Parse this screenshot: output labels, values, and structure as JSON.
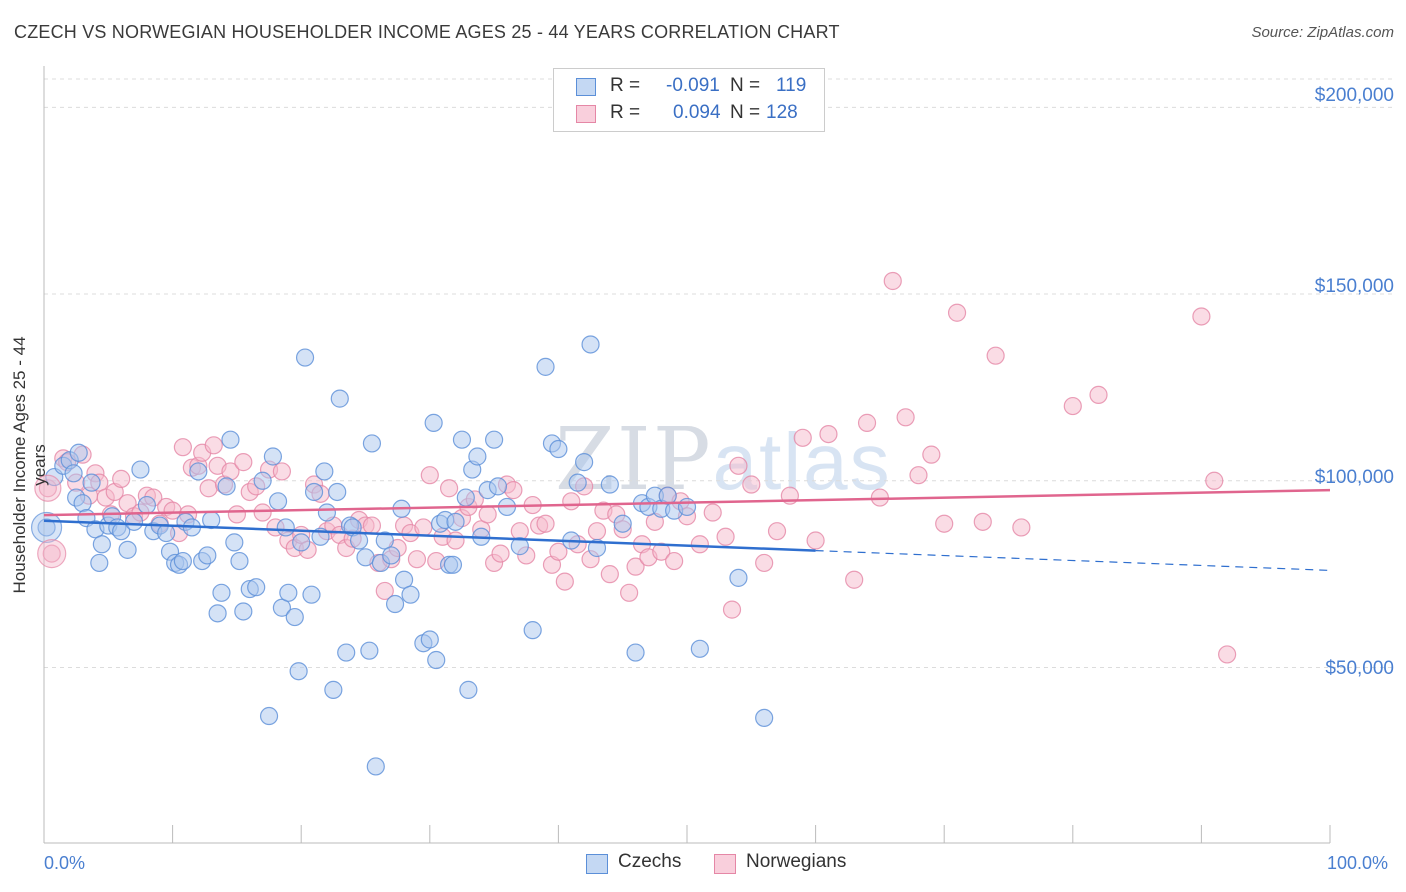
{
  "title": "CZECH VS NORWEGIAN HOUSEHOLDER INCOME AGES 25 - 44 YEARS CORRELATION CHART",
  "source": "Source: ZipAtlas.com",
  "watermark": {
    "zip": "ZIP",
    "atlas": "atlas"
  },
  "legend": {
    "rows": [
      {
        "r_label": "R =",
        "r_value": "-0.091",
        "n_label": "N =",
        "n_value": "119"
      },
      {
        "r_label": "R =",
        "r_value": "0.094",
        "n_label": "N =",
        "n_value": "128"
      }
    ]
  },
  "colors": {
    "czechs_fill": "#a9c6ee",
    "czechs_stroke": "#5b8fd8",
    "czechs_line": "#2f6fcf",
    "norwegians_fill": "#f5b9cb",
    "norwegians_stroke": "#e587a6",
    "norwegians_line": "#e0658e",
    "axis_text": "#4a7fd0",
    "grid": "#dcdcdc"
  },
  "chart_data": {
    "type": "scatter",
    "xlabel": "",
    "ylabel": "Householder Income Ages 25 - 44 years",
    "xlim": [
      0,
      100
    ],
    "ylim": [
      3000,
      210000
    ],
    "x_tick_labels": [
      "0.0%",
      "100.0%"
    ],
    "y_ticks": [
      50000,
      100000,
      150000,
      200000
    ],
    "y_tick_labels": [
      "$50,000",
      "$100,000",
      "$150,000",
      "$200,000"
    ],
    "grid": true,
    "legend_position": "bottom-center",
    "series": [
      {
        "name": "Czechs",
        "trend": {
          "x0": 0,
          "y0": 89300,
          "x1": 60,
          "y1": 81300,
          "dashed_to_x": 100,
          "dashed_to_y": 76000
        },
        "points": [
          [
            0.2,
            87500
          ],
          [
            0.8,
            101000
          ],
          [
            1.5,
            104000
          ],
          [
            2.0,
            105500
          ],
          [
            2.3,
            102000
          ],
          [
            2.5,
            95500
          ],
          [
            2.7,
            107500
          ],
          [
            3.0,
            94000
          ],
          [
            3.3,
            90000
          ],
          [
            3.7,
            99500
          ],
          [
            4.0,
            87000
          ],
          [
            4.3,
            78000
          ],
          [
            4.5,
            83000
          ],
          [
            5.0,
            88000
          ],
          [
            5.3,
            90500
          ],
          [
            5.7,
            87500
          ],
          [
            6.0,
            86500
          ],
          [
            6.5,
            81500
          ],
          [
            7.0,
            89000
          ],
          [
            7.5,
            103000
          ],
          [
            8.0,
            93500
          ],
          [
            8.5,
            86500
          ],
          [
            9.0,
            88000
          ],
          [
            9.5,
            86000
          ],
          [
            9.8,
            81000
          ],
          [
            10.2,
            78000
          ],
          [
            10.5,
            77500
          ],
          [
            10.8,
            78500
          ],
          [
            11.0,
            89000
          ],
          [
            11.5,
            87500
          ],
          [
            12.0,
            102500
          ],
          [
            12.3,
            78500
          ],
          [
            12.7,
            80000
          ],
          [
            13.0,
            89500
          ],
          [
            13.5,
            64500
          ],
          [
            13.8,
            70000
          ],
          [
            14.2,
            98500
          ],
          [
            14.5,
            111000
          ],
          [
            14.8,
            83500
          ],
          [
            15.2,
            78500
          ],
          [
            15.5,
            65000
          ],
          [
            16.0,
            71000
          ],
          [
            16.5,
            71500
          ],
          [
            17.0,
            100000
          ],
          [
            17.5,
            37000
          ],
          [
            17.8,
            106500
          ],
          [
            18.2,
            94500
          ],
          [
            18.5,
            66000
          ],
          [
            18.8,
            87500
          ],
          [
            19.0,
            70000
          ],
          [
            19.5,
            63500
          ],
          [
            19.8,
            49000
          ],
          [
            20.0,
            83500
          ],
          [
            20.3,
            133000
          ],
          [
            20.8,
            69500
          ],
          [
            21.0,
            97000
          ],
          [
            21.5,
            85000
          ],
          [
            21.8,
            102500
          ],
          [
            22.0,
            91500
          ],
          [
            22.5,
            44000
          ],
          [
            22.8,
            97000
          ],
          [
            23.0,
            122000
          ],
          [
            23.5,
            54000
          ],
          [
            23.8,
            88000
          ],
          [
            24.0,
            87500
          ],
          [
            24.5,
            84000
          ],
          [
            25.0,
            79500
          ],
          [
            25.3,
            54500
          ],
          [
            25.5,
            110000
          ],
          [
            25.8,
            23500
          ],
          [
            26.2,
            78000
          ],
          [
            26.5,
            84000
          ],
          [
            27.0,
            80000
          ],
          [
            27.3,
            67000
          ],
          [
            27.8,
            92500
          ],
          [
            28.0,
            73500
          ],
          [
            28.5,
            69500
          ],
          [
            29.5,
            56500
          ],
          [
            30.0,
            57500
          ],
          [
            30.3,
            115500
          ],
          [
            30.5,
            52000
          ],
          [
            30.8,
            88500
          ],
          [
            31.2,
            89500
          ],
          [
            31.5,
            77500
          ],
          [
            31.8,
            77500
          ],
          [
            32.0,
            89000
          ],
          [
            32.5,
            111000
          ],
          [
            32.8,
            95500
          ],
          [
            33.0,
            44000
          ],
          [
            33.3,
            103000
          ],
          [
            33.7,
            106500
          ],
          [
            34.0,
            85000
          ],
          [
            34.5,
            97500
          ],
          [
            35.0,
            111000
          ],
          [
            35.3,
            98500
          ],
          [
            36.0,
            93000
          ],
          [
            37.0,
            82500
          ],
          [
            38.0,
            60000
          ],
          [
            39.0,
            130500
          ],
          [
            39.5,
            110000
          ],
          [
            40.0,
            108500
          ],
          [
            41.0,
            84000
          ],
          [
            41.5,
            99500
          ],
          [
            42.0,
            105000
          ],
          [
            42.5,
            136500
          ],
          [
            43.0,
            82000
          ],
          [
            44.0,
            99000
          ],
          [
            45.0,
            88500
          ],
          [
            46.0,
            54000
          ],
          [
            46.5,
            94000
          ],
          [
            47.0,
            93000
          ],
          [
            47.5,
            96000
          ],
          [
            48.0,
            92500
          ],
          [
            48.5,
            96000
          ],
          [
            49.0,
            92000
          ],
          [
            50.0,
            93000
          ],
          [
            51.0,
            55000
          ],
          [
            54.0,
            74000
          ],
          [
            56.0,
            36500
          ]
        ]
      },
      {
        "name": "Norwegians",
        "trend": {
          "x0": 0,
          "y0": 90800,
          "x1": 100,
          "y1": 97500
        },
        "points": [
          [
            0.3,
            98000
          ],
          [
            0.6,
            80500
          ],
          [
            1.5,
            106000
          ],
          [
            1.8,
            105000
          ],
          [
            2.5,
            99500
          ],
          [
            3.0,
            107000
          ],
          [
            3.5,
            96000
          ],
          [
            4.0,
            102000
          ],
          [
            4.3,
            99500
          ],
          [
            4.8,
            95500
          ],
          [
            5.2,
            91000
          ],
          [
            5.5,
            97000
          ],
          [
            6.0,
            100500
          ],
          [
            6.5,
            94000
          ],
          [
            7.0,
            90500
          ],
          [
            7.5,
            91500
          ],
          [
            8.0,
            96000
          ],
          [
            8.5,
            95500
          ],
          [
            9.0,
            88500
          ],
          [
            9.5,
            93000
          ],
          [
            10.0,
            92000
          ],
          [
            10.5,
            86000
          ],
          [
            10.8,
            109000
          ],
          [
            11.2,
            91000
          ],
          [
            11.5,
            103500
          ],
          [
            12.0,
            104000
          ],
          [
            12.3,
            107500
          ],
          [
            12.8,
            98000
          ],
          [
            13.2,
            109500
          ],
          [
            13.5,
            104000
          ],
          [
            14.0,
            99000
          ],
          [
            14.5,
            102500
          ],
          [
            15.0,
            91000
          ],
          [
            15.5,
            105000
          ],
          [
            16.0,
            97000
          ],
          [
            16.5,
            98500
          ],
          [
            17.0,
            91500
          ],
          [
            17.5,
            103000
          ],
          [
            18.0,
            87500
          ],
          [
            18.5,
            102500
          ],
          [
            19.0,
            84000
          ],
          [
            19.5,
            82000
          ],
          [
            20.0,
            85500
          ],
          [
            20.5,
            81500
          ],
          [
            21.0,
            99000
          ],
          [
            21.5,
            96500
          ],
          [
            22.0,
            86500
          ],
          [
            22.5,
            88000
          ],
          [
            23.0,
            85500
          ],
          [
            23.5,
            82000
          ],
          [
            24.0,
            84500
          ],
          [
            24.5,
            89500
          ],
          [
            25.0,
            88000
          ],
          [
            25.5,
            88000
          ],
          [
            26.0,
            78000
          ],
          [
            26.5,
            70500
          ],
          [
            27.0,
            79000
          ],
          [
            27.5,
            82000
          ],
          [
            28.0,
            88000
          ],
          [
            28.5,
            86000
          ],
          [
            29.0,
            79000
          ],
          [
            29.5,
            87500
          ],
          [
            30.0,
            101500
          ],
          [
            30.5,
            78500
          ],
          [
            31.0,
            85000
          ],
          [
            31.5,
            98000
          ],
          [
            32.0,
            84000
          ],
          [
            32.5,
            90000
          ],
          [
            33.0,
            93000
          ],
          [
            33.5,
            95000
          ],
          [
            34.0,
            87000
          ],
          [
            34.5,
            91000
          ],
          [
            35.0,
            78000
          ],
          [
            35.5,
            80500
          ],
          [
            36.0,
            99000
          ],
          [
            36.5,
            97500
          ],
          [
            37.0,
            86500
          ],
          [
            37.5,
            80000
          ],
          [
            38.0,
            93500
          ],
          [
            38.5,
            88000
          ],
          [
            39.0,
            88500
          ],
          [
            39.5,
            77500
          ],
          [
            40.0,
            81000
          ],
          [
            40.5,
            73000
          ],
          [
            41.0,
            94500
          ],
          [
            41.5,
            83000
          ],
          [
            42.0,
            98500
          ],
          [
            42.5,
            79000
          ],
          [
            43.0,
            86500
          ],
          [
            43.5,
            92000
          ],
          [
            44.0,
            75000
          ],
          [
            44.5,
            91000
          ],
          [
            45.0,
            87000
          ],
          [
            45.5,
            70000
          ],
          [
            46.0,
            77000
          ],
          [
            46.5,
            83000
          ],
          [
            47.0,
            79500
          ],
          [
            47.5,
            89000
          ],
          [
            48.0,
            81000
          ],
          [
            48.5,
            96000
          ],
          [
            49.0,
            78500
          ],
          [
            49.5,
            94500
          ],
          [
            50.0,
            90500
          ],
          [
            51.0,
            83000
          ],
          [
            52.0,
            91500
          ],
          [
            53.0,
            85000
          ],
          [
            53.5,
            65500
          ],
          [
            54.0,
            104000
          ],
          [
            55.0,
            99000
          ],
          [
            56.0,
            78000
          ],
          [
            57.0,
            86500
          ],
          [
            58.0,
            96000
          ],
          [
            59.0,
            111500
          ],
          [
            60.0,
            84000
          ],
          [
            61.0,
            112500
          ],
          [
            63.0,
            73500
          ],
          [
            64.0,
            115500
          ],
          [
            65.0,
            95500
          ],
          [
            66.0,
            153500
          ],
          [
            67.0,
            117000
          ],
          [
            68.0,
            101500
          ],
          [
            69.0,
            107000
          ],
          [
            70.0,
            88500
          ],
          [
            71.0,
            145000
          ],
          [
            73.0,
            89000
          ],
          [
            74.0,
            133500
          ],
          [
            76.0,
            87500
          ],
          [
            80.0,
            120000
          ],
          [
            82.0,
            123000
          ],
          [
            90.0,
            144000
          ],
          [
            91.0,
            100000
          ],
          [
            92.0,
            53500
          ]
        ]
      }
    ]
  },
  "bottom_legend": [
    "Czechs",
    "Norwegians"
  ]
}
